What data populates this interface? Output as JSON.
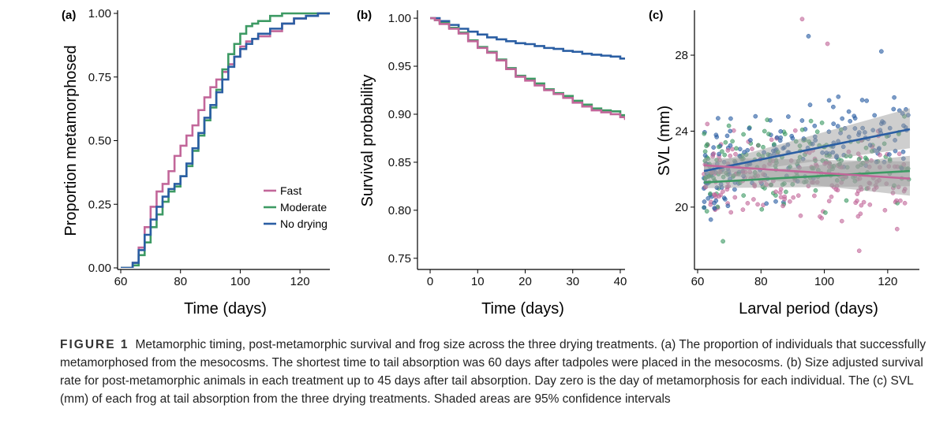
{
  "colors": {
    "fast": "#c2679a",
    "moderate": "#3d9a64",
    "no_drying": "#2a5ea3",
    "ci_fill": "#9e9e9e"
  },
  "caption": {
    "label": "FIGURE 1",
    "text": "Metamorphic timing, post-metamorphic survival and frog size across the three drying treatments. (a) The proportion of individuals that successfully metamorphosed from the mesocosms. The shortest time to tail absorption was 60 days after tadpoles were placed in the mesocosms. (b) Size adjusted survival rate for post-metamorphic animals in each treatment up to 45 days after tail absorption. Day zero is the day of metamorphosis for each individual. The (c) SVL (mm) of each frog at tail absorption from the three drying treatments. Shaded areas are 95% confidence intervals"
  },
  "chart_data": [
    {
      "panel": "(a)",
      "type": "line",
      "step": true,
      "xlabel": "Time (days)",
      "ylabel": "Proportion metamorphosed",
      "xlim": [
        60,
        130
      ],
      "ylim": [
        0,
        1
      ],
      "xticks": [
        60,
        80,
        100,
        120
      ],
      "yticks": [
        0,
        0.25,
        0.5,
        0.75,
        1
      ],
      "ytick_labels": [
        "0.00",
        "0.25",
        "0.50",
        "0.75",
        "1.00"
      ],
      "legend": {
        "position": "right-middle",
        "entries": [
          "Fast",
          "Moderate",
          "No drying"
        ]
      },
      "series": [
        {
          "name": "Fast",
          "color_key": "fast",
          "x": [
            60,
            64,
            66,
            68,
            70,
            72,
            74,
            76,
            78,
            80,
            82,
            84,
            86,
            88,
            90,
            92,
            94,
            96,
            98,
            100,
            102,
            104,
            106,
            110,
            114,
            118,
            122,
            126,
            130
          ],
          "y": [
            0,
            0.02,
            0.08,
            0.16,
            0.24,
            0.3,
            0.33,
            0.38,
            0.44,
            0.48,
            0.52,
            0.56,
            0.62,
            0.67,
            0.71,
            0.74,
            0.77,
            0.8,
            0.83,
            0.87,
            0.89,
            0.9,
            0.91,
            0.93,
            0.96,
            0.98,
            0.99,
            1.0,
            1.0
          ]
        },
        {
          "name": "Moderate",
          "color_key": "moderate",
          "x": [
            60,
            64,
            66,
            68,
            70,
            72,
            74,
            76,
            78,
            80,
            82,
            84,
            86,
            88,
            90,
            92,
            94,
            96,
            98,
            100,
            102,
            104,
            106,
            110,
            114,
            118,
            122,
            126,
            130
          ],
          "y": [
            0,
            0.01,
            0.05,
            0.1,
            0.16,
            0.21,
            0.26,
            0.3,
            0.32,
            0.36,
            0.4,
            0.46,
            0.52,
            0.58,
            0.63,
            0.7,
            0.78,
            0.84,
            0.88,
            0.92,
            0.95,
            0.96,
            0.97,
            0.99,
            1.0,
            1.0,
            1.0,
            1.0,
            1.0
          ]
        },
        {
          "name": "No drying",
          "color_key": "no_drying",
          "x": [
            60,
            64,
            66,
            68,
            70,
            72,
            74,
            76,
            78,
            80,
            82,
            84,
            86,
            88,
            90,
            92,
            94,
            96,
            98,
            100,
            102,
            104,
            106,
            110,
            114,
            118,
            122,
            126,
            130
          ],
          "y": [
            0,
            0.02,
            0.07,
            0.13,
            0.19,
            0.24,
            0.28,
            0.31,
            0.33,
            0.36,
            0.41,
            0.47,
            0.53,
            0.59,
            0.64,
            0.69,
            0.74,
            0.79,
            0.83,
            0.86,
            0.88,
            0.9,
            0.92,
            0.94,
            0.96,
            0.98,
            0.99,
            1.0,
            1.0
          ]
        }
      ]
    },
    {
      "panel": "(b)",
      "type": "line",
      "step": true,
      "xlabel": "Time (days)",
      "ylabel": "Survival probability",
      "xlim": [
        -2,
        41
      ],
      "ylim": [
        0.74,
        1.005
      ],
      "xticks": [
        0,
        10,
        20,
        30,
        40
      ],
      "yticks": [
        0.75,
        0.8,
        0.85,
        0.9,
        0.95,
        1
      ],
      "ytick_labels": [
        "0.75",
        "0.80",
        "0.85",
        "0.90",
        "0.95",
        "1.00"
      ],
      "series": [
        {
          "name": "No drying",
          "color_key": "no_drying",
          "x": [
            0,
            2,
            4,
            6,
            8,
            10,
            12,
            14,
            16,
            18,
            20,
            22,
            24,
            26,
            28,
            30,
            32,
            34,
            36,
            38,
            40,
            41
          ],
          "y": [
            1.0,
            0.997,
            0.993,
            0.989,
            0.986,
            0.983,
            0.98,
            0.978,
            0.976,
            0.974,
            0.973,
            0.971,
            0.969,
            0.968,
            0.966,
            0.965,
            0.963,
            0.962,
            0.961,
            0.96,
            0.958,
            0.957
          ]
        },
        {
          "name": "Moderate",
          "color_key": "moderate",
          "x": [
            0,
            1,
            2,
            4,
            6,
            8,
            10,
            12,
            14,
            16,
            18,
            20,
            22,
            24,
            26,
            28,
            30,
            32,
            34,
            36,
            38,
            40,
            41
          ],
          "y": [
            1.0,
            0.998,
            0.995,
            0.99,
            0.985,
            0.977,
            0.97,
            0.965,
            0.957,
            0.948,
            0.94,
            0.937,
            0.932,
            0.926,
            0.922,
            0.919,
            0.914,
            0.91,
            0.906,
            0.904,
            0.903,
            0.899,
            0.897
          ]
        },
        {
          "name": "Fast",
          "color_key": "fast",
          "x": [
            0,
            1,
            2,
            4,
            6,
            8,
            10,
            12,
            14,
            16,
            18,
            20,
            22,
            24,
            26,
            28,
            30,
            32,
            34,
            36,
            38,
            40,
            41
          ],
          "y": [
            1.0,
            0.998,
            0.994,
            0.989,
            0.984,
            0.976,
            0.969,
            0.964,
            0.956,
            0.947,
            0.939,
            0.935,
            0.93,
            0.925,
            0.921,
            0.917,
            0.912,
            0.908,
            0.904,
            0.902,
            0.9,
            0.897,
            0.894
          ]
        }
      ]
    },
    {
      "panel": "(c)",
      "type": "scatter",
      "xlabel": "Larval period (days)",
      "ylabel": "SVL (mm)",
      "xlim": [
        60,
        130
      ],
      "ylim": [
        16.8,
        30.2
      ],
      "xticks": [
        60,
        80,
        100,
        120
      ],
      "yticks": [
        20,
        24,
        28
      ],
      "ytick_labels": [
        "20",
        "24",
        "28"
      ],
      "points": {
        "generated": true,
        "seed": 7,
        "n": 540,
        "x_range": [
          62,
          127
        ],
        "center": 21.9,
        "spread": 1.6,
        "outliers": [
          {
            "x": 93,
            "y": 29.9,
            "group": "fast"
          },
          {
            "x": 95,
            "y": 29.0,
            "group": "no_drying"
          },
          {
            "x": 101,
            "y": 28.6,
            "group": "fast"
          },
          {
            "x": 118,
            "y": 28.2,
            "group": "no_drying"
          },
          {
            "x": 111,
            "y": 17.7,
            "group": "fast"
          },
          {
            "x": 68,
            "y": 18.2,
            "group": "moderate"
          }
        ]
      },
      "fits": [
        {
          "name": "No drying",
          "color_key": "no_drying",
          "x": [
            62,
            127
          ],
          "y": [
            21.9,
            24.1
          ],
          "ci": [
            [
              21.6,
              22.2
            ],
            [
              23.1,
              25.2
            ]
          ]
        },
        {
          "name": "Moderate",
          "color_key": "moderate",
          "x": [
            62,
            127
          ],
          "y": [
            21.3,
            21.9
          ],
          "ci": [
            [
              21.0,
              21.6
            ],
            [
              21.1,
              22.7
            ]
          ]
        },
        {
          "name": "Fast",
          "color_key": "fast",
          "x": [
            62,
            127
          ],
          "y": [
            22.2,
            21.5
          ],
          "ci": [
            [
              21.8,
              22.6
            ],
            [
              20.6,
              22.4
            ]
          ]
        }
      ]
    }
  ]
}
